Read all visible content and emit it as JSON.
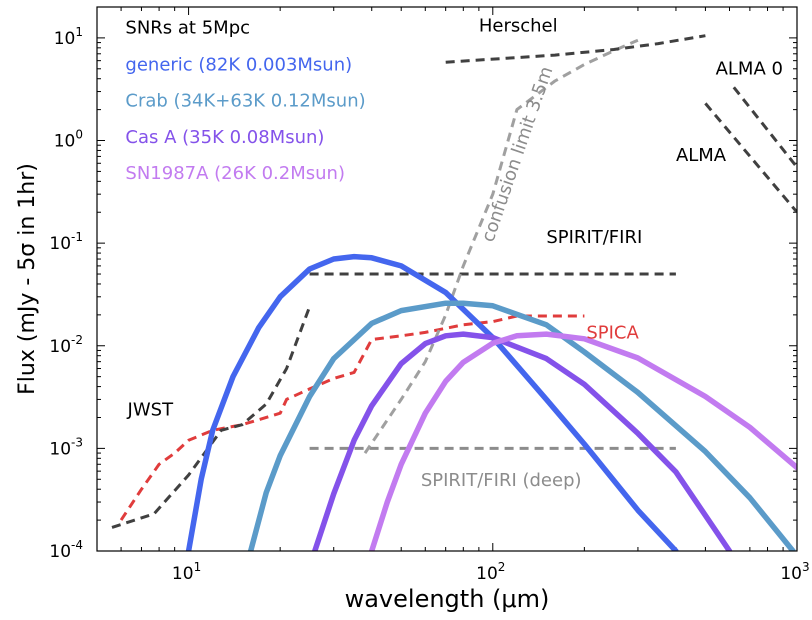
{
  "chart_data": {
    "type": "line",
    "xlabel": "wavelength (μm)",
    "ylabel": "Flux (mJy - 5σ in 1hr)",
    "xscale": "log",
    "yscale": "log",
    "xlim": [
      5,
      1000
    ],
    "ylim": [
      0.0001,
      20
    ],
    "x_ticks": [
      {
        "value": 10,
        "base": "10",
        "exp": "1"
      },
      {
        "value": 100,
        "base": "10",
        "exp": "2"
      },
      {
        "value": 1000,
        "base": "10",
        "exp": "3"
      }
    ],
    "y_ticks": [
      {
        "value": 0.0001,
        "base": "10",
        "exp": "-4"
      },
      {
        "value": 0.001,
        "base": "10",
        "exp": "-3"
      },
      {
        "value": 0.01,
        "base": "10",
        "exp": "-2"
      },
      {
        "value": 0.1,
        "base": "10",
        "exp": "-1"
      },
      {
        "value": 1,
        "base": "10",
        "exp": "0"
      },
      {
        "value": 10,
        "base": "10",
        "exp": "1"
      }
    ],
    "legend_title": "SNRs at 5Mpc",
    "legend_placement": "top-left",
    "series": [
      {
        "name": "generic (82K 0.003Msun)",
        "color": "#4466ee",
        "style": "solid",
        "x": [
          10,
          11,
          12,
          14,
          17,
          20,
          25,
          30,
          35,
          40,
          50,
          70,
          100,
          150,
          200,
          300,
          400
        ],
        "y": [
          0.0001,
          0.0005,
          0.0015,
          0.005,
          0.015,
          0.03,
          0.056,
          0.07,
          0.074,
          0.072,
          0.06,
          0.033,
          0.012,
          0.003,
          0.0011,
          0.00025,
          0.0001
        ]
      },
      {
        "name": "Crab (34K+63K 0.12Msun)",
        "color": "#5b9bc9",
        "style": "solid",
        "x": [
          16,
          18,
          20,
          25,
          30,
          40,
          50,
          70,
          80,
          100,
          150,
          200,
          300,
          500,
          700,
          970
        ],
        "y": [
          0.0001,
          0.00037,
          0.00085,
          0.0032,
          0.0075,
          0.0165,
          0.022,
          0.026,
          0.026,
          0.0245,
          0.016,
          0.0087,
          0.0035,
          0.00093,
          0.00033,
          0.0001
        ]
      },
      {
        "name": "Cas A (35K 0.08Msun)",
        "color": "#8452ea",
        "style": "solid",
        "x": [
          26,
          30,
          35,
          40,
          50,
          60,
          70,
          80,
          100,
          150,
          200,
          300,
          400,
          600
        ],
        "y": [
          0.0001,
          0.00036,
          0.0012,
          0.0026,
          0.0067,
          0.0105,
          0.0125,
          0.013,
          0.012,
          0.0075,
          0.0042,
          0.0014,
          0.00059,
          0.0001
        ]
      },
      {
        "name": "SN1987A (26K 0.2Msun)",
        "color": "#c27bf0",
        "style": "solid",
        "x": [
          40,
          45,
          50,
          60,
          70,
          80,
          100,
          120,
          150,
          200,
          300,
          500,
          700,
          1000
        ],
        "y": [
          0.0001,
          0.0003,
          0.0007,
          0.0022,
          0.0045,
          0.0069,
          0.0106,
          0.0125,
          0.013,
          0.0117,
          0.0076,
          0.0032,
          0.0016,
          0.00065
        ]
      },
      {
        "name": "SPICA",
        "color": "#e03c3c",
        "style": "dashed",
        "x": [
          6,
          7,
          8,
          9,
          10,
          12,
          15,
          20,
          21,
          25,
          30,
          35,
          40,
          50,
          60,
          80,
          100,
          120,
          150,
          200
        ],
        "y": [
          0.0002,
          0.0004,
          0.0007,
          0.0009,
          0.0012,
          0.0015,
          0.0017,
          0.0022,
          0.003,
          0.0038,
          0.0048,
          0.0055,
          0.0115,
          0.0125,
          0.0135,
          0.016,
          0.0172,
          0.0195,
          0.0195,
          0.0195
        ]
      },
      {
        "name": "JWST",
        "color": "#404040",
        "style": "dashed",
        "x": [
          5.6,
          7.7,
          10,
          12.8,
          15,
          18,
          21,
          25
        ],
        "y": [
          0.00017,
          0.00023,
          0.00055,
          0.0015,
          0.0017,
          0.0027,
          0.006,
          0.024
        ]
      },
      {
        "name": "SPIRIT/FIRI",
        "color": "#404040",
        "style": "dashed",
        "x": [
          25,
          400
        ],
        "y": [
          0.05,
          0.05
        ]
      },
      {
        "name": "SPIRIT/FIRI (deep)",
        "color": "#8c8c8c",
        "style": "dashed",
        "x": [
          25,
          400
        ],
        "y": [
          0.001,
          0.001
        ]
      },
      {
        "name": "confusion limit 3.5m",
        "color": "#a0a0a0",
        "style": "dashed",
        "x": [
          38,
          50,
          60,
          70,
          80,
          100,
          120,
          160,
          200,
          250,
          300
        ],
        "y": [
          0.0009,
          0.003,
          0.007,
          0.02,
          0.06,
          0.3,
          2.0,
          3.8,
          5.5,
          7.5,
          9.5
        ]
      },
      {
        "name": "Herschel",
        "color": "#404040",
        "style": "dashed",
        "x": [
          70,
          160,
          250,
          350,
          500
        ],
        "y": [
          5.8,
          6.8,
          7.7,
          8.8,
          10.5
        ]
      },
      {
        "name": "ALMA",
        "color": "#404040",
        "style": "dashed",
        "x": [
          500,
          1000
        ],
        "y": [
          2.3,
          0.2
        ]
      },
      {
        "name": "ALMA 0",
        "color": "#404040",
        "style": "dashed",
        "x": [
          620,
          1000
        ],
        "y": [
          3.3,
          0.55
        ]
      }
    ],
    "labels": [
      {
        "text": "SNRs at 5Mpc",
        "x": 6.2,
        "y": 11,
        "color": "#000000",
        "anchor": "start"
      },
      {
        "text": "generic (82K 0.003Msun)",
        "x": 6.2,
        "y": 4.8,
        "color": "#4466ee",
        "anchor": "start"
      },
      {
        "text": "Crab (34K+63K 0.12Msun)",
        "x": 6.2,
        "y": 2.15,
        "color": "#5b9bc9",
        "anchor": "start"
      },
      {
        "text": "Cas A (35K 0.08Msun)",
        "x": 6.2,
        "y": 0.95,
        "color": "#8452ea",
        "anchor": "start"
      },
      {
        "text": "SN1987A (26K 0.2Msun)",
        "x": 6.2,
        "y": 0.42,
        "color": "#c27bf0",
        "anchor": "start"
      },
      {
        "text": "Herschel",
        "x": 90,
        "y": 11.5,
        "color": "#000000",
        "anchor": "start"
      },
      {
        "text": "ALMA 0",
        "x": 540,
        "y": 4.4,
        "color": "#000000",
        "anchor": "start"
      },
      {
        "text": "ALMA",
        "x": 400,
        "y": 0.63,
        "color": "#000000",
        "anchor": "start"
      },
      {
        "text": "SPIRIT/FIRI",
        "x": 150,
        "y": 0.1,
        "color": "#000000",
        "anchor": "start"
      },
      {
        "text": "SPICA",
        "x": 203,
        "y": 0.0118,
        "color": "#e03c3c",
        "anchor": "start"
      },
      {
        "text": "JWST",
        "x": 6.3,
        "y": 0.0021,
        "color": "#000000",
        "anchor": "start"
      },
      {
        "text": "SPIRIT/FIRI (deep)",
        "x": 58,
        "y": 0.00043,
        "color": "#8c8c8c",
        "anchor": "start"
      },
      {
        "text": "confusion limit 3.5m",
        "x": 100,
        "y": 0.1,
        "color": "#8c8c8c",
        "anchor": "start",
        "rotate": -71
      }
    ]
  }
}
